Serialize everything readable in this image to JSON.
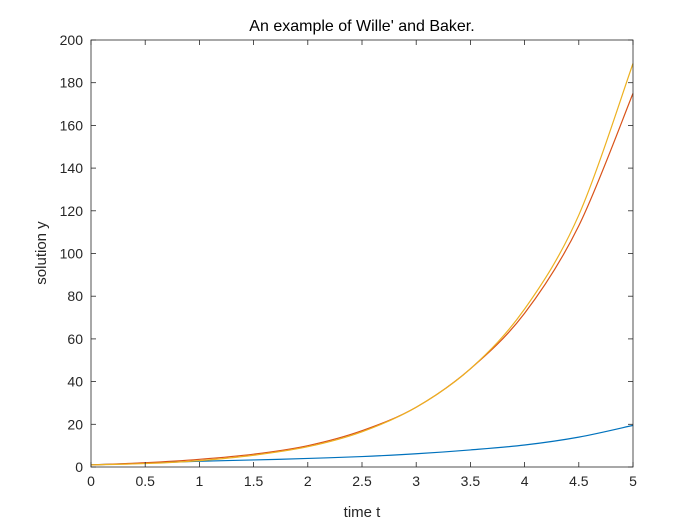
{
  "chart_data": {
    "type": "line",
    "title": "An example of Wille' and Baker.",
    "xlabel": "time t",
    "ylabel": "solution y",
    "xlim": [
      0,
      5
    ],
    "ylim": [
      0,
      200
    ],
    "xticks": [
      0,
      0.5,
      1,
      1.5,
      2,
      2.5,
      3,
      3.5,
      4,
      4.5,
      5
    ],
    "xtick_labels": [
      "0",
      "0.5",
      "1",
      "1.5",
      "2",
      "2.5",
      "3",
      "3.5",
      "4",
      "4.5",
      "5"
    ],
    "yticks": [
      0,
      20,
      40,
      60,
      80,
      100,
      120,
      140,
      160,
      180,
      200
    ],
    "ytick_labels": [
      "0",
      "20",
      "40",
      "60",
      "80",
      "100",
      "120",
      "140",
      "160",
      "180",
      "200"
    ],
    "grid": false,
    "series": [
      {
        "color": "#0072BD",
        "x": [
          0,
          0.5,
          1,
          1.5,
          2,
          2.5,
          3,
          3.5,
          4,
          4.5,
          5
        ],
        "y": [
          1,
          1.8,
          2.7,
          3.3,
          4.0,
          4.9,
          6.2,
          8.0,
          10.3,
          14.0,
          19.5
        ]
      },
      {
        "color": "#D95319",
        "x": [
          0,
          0.5,
          1,
          1.5,
          2,
          2.5,
          3,
          3.5,
          4,
          4.5,
          5
        ],
        "y": [
          1,
          2,
          3.6,
          6,
          10,
          17,
          28,
          46,
          72,
          113,
          175
        ]
      },
      {
        "color": "#EDB120",
        "x": [
          0,
          0.5,
          1,
          1.5,
          2,
          2.5,
          3,
          3.5,
          4,
          4.5,
          5
        ],
        "y": [
          1,
          1.6,
          3,
          5.5,
          9.5,
          16.5,
          28,
          46,
          74,
          118,
          189
        ]
      }
    ]
  }
}
